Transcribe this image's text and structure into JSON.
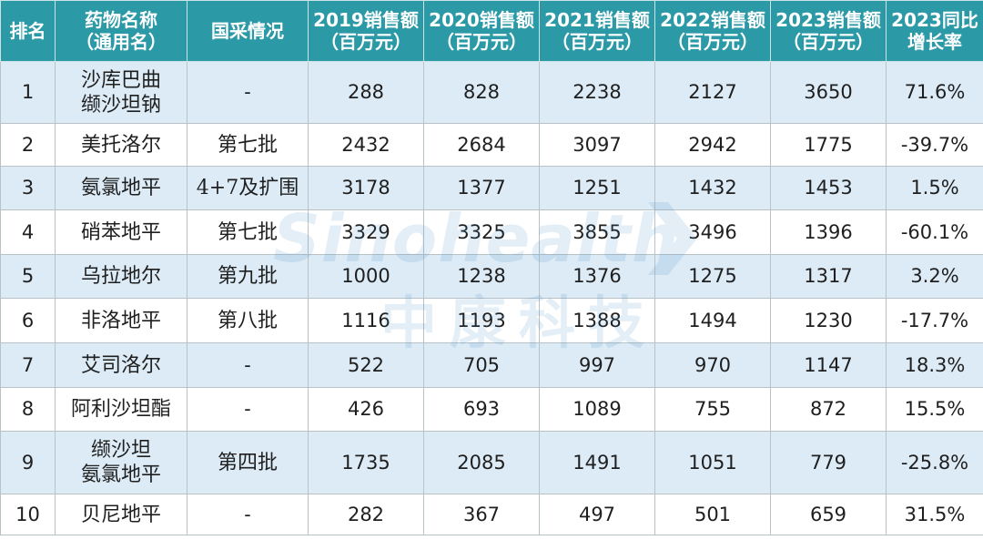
{
  "table": {
    "headers": [
      {
        "line1": "排名",
        "line2": ""
      },
      {
        "line1": "药物名称",
        "line2": "（通用名）"
      },
      {
        "line1": "国采情况",
        "line2": ""
      },
      {
        "line1": "2019销售额",
        "line2": "（百万元）"
      },
      {
        "line1": "2020销售额",
        "line2": "（百万元）"
      },
      {
        "line1": "2021销售额",
        "line2": "（百万元）"
      },
      {
        "line1": "2022销售额",
        "line2": "（百万元）"
      },
      {
        "line1": "2023销售额",
        "line2": "（百万元）"
      },
      {
        "line1": "2023同比",
        "line2": "增长率"
      }
    ],
    "rows": [
      {
        "rank": "1",
        "name1": "沙库巴曲",
        "name2": "缬沙坦钠",
        "vbp": "-",
        "s2019": "288",
        "s2020": "828",
        "s2021": "2238",
        "s2022": "2127",
        "s2023": "3650",
        "growth": "71.6%"
      },
      {
        "rank": "2",
        "name1": "美托洛尔",
        "name2": "",
        "vbp": "第七批",
        "s2019": "2432",
        "s2020": "2684",
        "s2021": "3097",
        "s2022": "2942",
        "s2023": "1775",
        "growth": "-39.7%"
      },
      {
        "rank": "3",
        "name1": "氨氯地平",
        "name2": "",
        "vbp": "4+7及扩围",
        "s2019": "3178",
        "s2020": "1377",
        "s2021": "1251",
        "s2022": "1432",
        "s2023": "1453",
        "growth": "1.5%"
      },
      {
        "rank": "4",
        "name1": "硝苯地平",
        "name2": "",
        "vbp": "第七批",
        "s2019": "3329",
        "s2020": "3325",
        "s2021": "3855",
        "s2022": "3496",
        "s2023": "1396",
        "growth": "-60.1%"
      },
      {
        "rank": "5",
        "name1": "乌拉地尔",
        "name2": "",
        "vbp": "第九批",
        "s2019": "1000",
        "s2020": "1238",
        "s2021": "1376",
        "s2022": "1275",
        "s2023": "1317",
        "growth": "3.2%"
      },
      {
        "rank": "6",
        "name1": "非洛地平",
        "name2": "",
        "vbp": "第八批",
        "s2019": "1116",
        "s2020": "1193",
        "s2021": "1388",
        "s2022": "1494",
        "s2023": "1230",
        "growth": "-17.7%"
      },
      {
        "rank": "7",
        "name1": "艾司洛尔",
        "name2": "",
        "vbp": "-",
        "s2019": "522",
        "s2020": "705",
        "s2021": "997",
        "s2022": "970",
        "s2023": "1147",
        "growth": "18.3%"
      },
      {
        "rank": "8",
        "name1": "阿利沙坦酯",
        "name2": "",
        "vbp": "-",
        "s2019": "426",
        "s2020": "693",
        "s2021": "1089",
        "s2022": "755",
        "s2023": "872",
        "growth": "15.5%"
      },
      {
        "rank": "9",
        "name1": "缬沙坦",
        "name2": "氨氯地平",
        "vbp": "第四批",
        "s2019": "1735",
        "s2020": "2085",
        "s2021": "1491",
        "s2022": "1051",
        "s2023": "779",
        "growth": "-25.8%"
      },
      {
        "rank": "10",
        "name1": "贝尼地平",
        "name2": "",
        "vbp": "-",
        "s2019": "282",
        "s2020": "367",
        "s2021": "497",
        "s2022": "501",
        "s2023": "659",
        "growth": "31.5%"
      }
    ]
  },
  "watermark": {
    "text_en": "Sinohealth",
    "text_cn": "中康科技",
    "color": "#2d7fbf"
  },
  "colors": {
    "header_bg": "#2c9aa6",
    "stripe_bg": "#dcebf6"
  }
}
